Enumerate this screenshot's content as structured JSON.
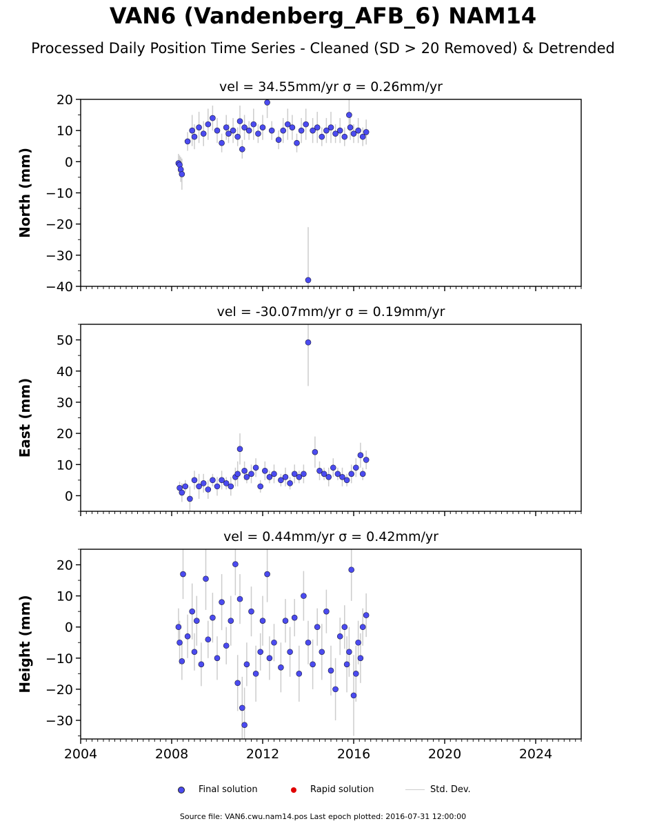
{
  "title": "VAN6 (Vandenberg_AFB_6) NAM14",
  "subtitle": "Processed Daily Position Time Series - Cleaned (SD > 20 Removed) & Detrended",
  "legend": {
    "final_label": "Final solution",
    "rapid_label": "Rapid solution",
    "std_label": "Std. Dev.",
    "final_color": "#4b4bf0",
    "rapid_color": "#e00000",
    "std_color": "#cccccc"
  },
  "source_text": "Source file: VAN6.cwu.nam14.pos  Last epoch plotted: 2016-07-31 12:00:00",
  "chart_data": [
    {
      "type": "scatter",
      "title": "vel = 34.55mm/yr   σ = 0.26mm/yr",
      "ylabel": "North (mm)",
      "xlim": [
        2004,
        2026
      ],
      "ylim": [
        -40,
        20
      ],
      "yticks": [
        20,
        10,
        0,
        -10,
        -20,
        -30,
        -40
      ],
      "ytick_labels": [
        "20",
        "10",
        "0",
        "−10",
        "−20",
        "−30",
        "−40"
      ],
      "series": [
        {
          "x": [
            2008.3,
            2008.35,
            2008.4,
            2008.45,
            2008.7,
            2008.9,
            2009.0,
            2009.2,
            2009.4,
            2009.6,
            2009.8,
            2010.0,
            2010.2,
            2010.4,
            2010.5,
            2010.7,
            2010.9,
            2011.0,
            2011.1,
            2011.2,
            2011.4,
            2011.6,
            2011.8,
            2012.0,
            2012.2,
            2012.4,
            2012.7,
            2012.9,
            2013.1,
            2013.3,
            2013.5,
            2013.7,
            2013.9,
            2014.0,
            2014.2,
            2014.4,
            2014.6,
            2014.8,
            2015.0,
            2015.2,
            2015.4,
            2015.6,
            2015.8,
            2015.85,
            2016.0,
            2016.2,
            2016.4,
            2016.55
          ],
          "y": [
            -0.5,
            -1,
            -2.5,
            -4,
            6.5,
            10,
            8,
            11,
            9,
            12,
            14,
            10,
            6,
            11,
            9,
            10,
            8,
            13,
            4,
            11,
            10,
            12,
            9,
            11,
            19,
            10,
            7,
            10,
            12,
            11,
            6,
            10,
            12,
            -38,
            10,
            11,
            8,
            10,
            11,
            9,
            10,
            8,
            15,
            11,
            9,
            10,
            8,
            9.5
          ],
          "err": [
            3,
            3,
            4,
            5,
            3,
            5,
            4,
            5,
            4,
            5,
            4,
            4,
            3,
            4,
            3,
            4,
            3,
            5,
            3,
            4,
            3,
            5,
            3,
            4,
            5,
            3,
            3,
            4,
            5,
            4,
            3,
            4,
            5,
            17,
            4,
            5,
            3,
            4,
            5,
            3,
            4,
            3,
            5,
            4,
            3,
            4,
            3,
            4
          ]
        }
      ]
    },
    {
      "type": "scatter",
      "title": "vel = -30.07mm/yr   σ = 0.19mm/yr",
      "ylabel": "East (mm)",
      "xlim": [
        2004,
        2026
      ],
      "ylim": [
        -5,
        55
      ],
      "yticks": [
        50,
        40,
        30,
        20,
        10,
        0
      ],
      "ytick_labels": [
        "50",
        "40",
        "30",
        "20",
        "10",
        "0"
      ],
      "series": [
        {
          "x": [
            2008.35,
            2008.45,
            2008.6,
            2008.8,
            2009.0,
            2009.2,
            2009.4,
            2009.6,
            2009.8,
            2010.0,
            2010.2,
            2010.4,
            2010.6,
            2010.8,
            2010.9,
            2011.0,
            2011.2,
            2011.3,
            2011.5,
            2011.7,
            2011.9,
            2012.1,
            2012.3,
            2012.5,
            2012.8,
            2013.0,
            2013.2,
            2013.4,
            2013.6,
            2013.8,
            2014.0,
            2014.3,
            2014.5,
            2014.7,
            2014.9,
            2015.1,
            2015.3,
            2015.5,
            2015.7,
            2015.9,
            2016.1,
            2016.3,
            2016.4,
            2016.55
          ],
          "y": [
            2.5,
            1,
            3,
            -1,
            5,
            3,
            4,
            2,
            5,
            3,
            5,
            4,
            3,
            6,
            7,
            15,
            8,
            6,
            7,
            9,
            3,
            8,
            6,
            7,
            5,
            6,
            4,
            7,
            6,
            7,
            49.2,
            14,
            8,
            7,
            6,
            9,
            7,
            6,
            5,
            7,
            9,
            13,
            7,
            11.5
          ],
          "err": [
            2,
            3,
            2,
            4,
            3,
            4,
            3,
            3,
            2,
            3,
            3,
            2,
            3,
            3,
            4,
            5,
            3,
            2,
            3,
            3,
            2,
            3,
            2,
            3,
            2,
            3,
            2,
            3,
            2,
            3,
            14,
            5,
            3,
            2,
            3,
            3,
            2,
            3,
            2,
            3,
            3,
            4,
            2,
            3
          ]
        }
      ]
    },
    {
      "type": "scatter",
      "title": "vel = 0.44mm/yr   σ = 0.42mm/yr",
      "ylabel": "Height (mm)",
      "xlim": [
        2004,
        2026
      ],
      "ylim": [
        -36,
        25
      ],
      "yticks": [
        20,
        10,
        0,
        -10,
        -20,
        -30
      ],
      "ytick_labels": [
        "20",
        "10",
        "0",
        "−10",
        "−20",
        "−30"
      ],
      "xticks": [
        2004,
        2008,
        2012,
        2016,
        2020,
        2024
      ],
      "xtick_labels": [
        "2004",
        "2008",
        "2012",
        "2016",
        "2020",
        "2024"
      ],
      "series": [
        {
          "x": [
            2008.3,
            2008.35,
            2008.45,
            2008.5,
            2008.7,
            2008.9,
            2009.0,
            2009.1,
            2009.3,
            2009.5,
            2009.6,
            2009.8,
            2010.0,
            2010.2,
            2010.4,
            2010.6,
            2010.8,
            2010.9,
            2011.0,
            2011.1,
            2011.2,
            2011.3,
            2011.5,
            2011.7,
            2011.9,
            2012.0,
            2012.2,
            2012.3,
            2012.5,
            2012.8,
            2013.0,
            2013.2,
            2013.4,
            2013.6,
            2013.8,
            2014.0,
            2014.2,
            2014.4,
            2014.6,
            2014.8,
            2015.0,
            2015.2,
            2015.4,
            2015.6,
            2015.7,
            2015.8,
            2015.9,
            2016.0,
            2016.1,
            2016.2,
            2016.3,
            2016.4,
            2016.55
          ],
          "y": [
            0,
            -5,
            -11,
            17,
            -3,
            5,
            -8,
            2,
            -12,
            15.5,
            -4,
            3,
            -10,
            8,
            -6,
            2,
            20.2,
            -18,
            9,
            -26,
            -31.5,
            -12,
            5,
            -15,
            -8,
            2,
            17,
            -10,
            -5,
            -13,
            2,
            -8,
            3,
            -15,
            10,
            -5,
            -12,
            0,
            -8,
            5,
            -14,
            -20,
            -3,
            0,
            -12,
            -8,
            18.4,
            -22,
            -15,
            -5,
            -10,
            0,
            3.8
          ],
          "err": [
            6,
            7,
            6,
            8,
            7,
            9,
            6,
            8,
            7,
            10,
            6,
            8,
            7,
            9,
            6,
            8,
            10,
            9,
            8,
            10,
            12,
            7,
            8,
            9,
            6,
            8,
            9,
            7,
            6,
            8,
            7,
            8,
            6,
            9,
            8,
            7,
            8,
            6,
            9,
            7,
            8,
            10,
            6,
            7,
            9,
            8,
            10,
            13,
            9,
            7,
            8,
            6,
            7
          ]
        }
      ]
    }
  ]
}
